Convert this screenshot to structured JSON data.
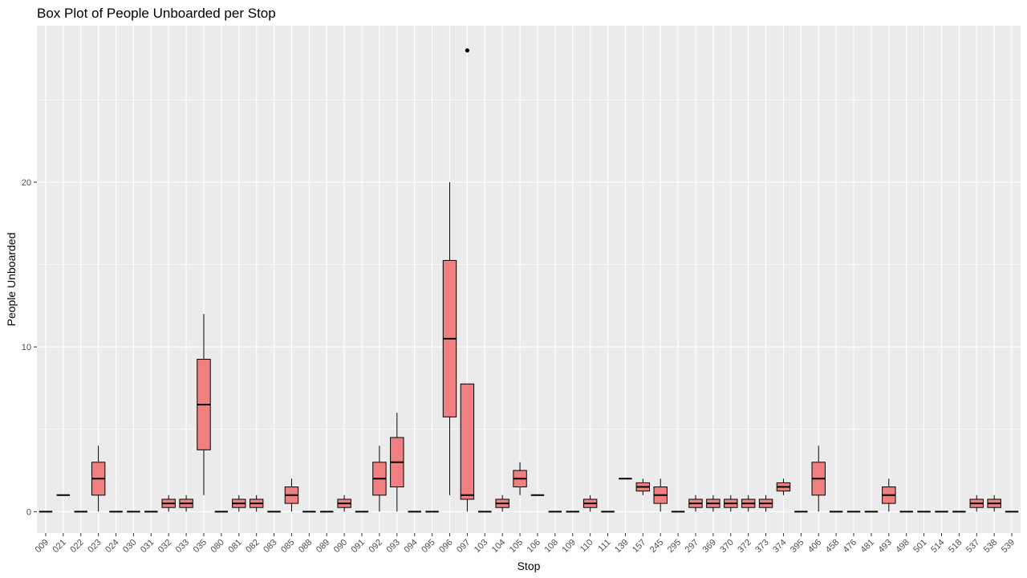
{
  "chart_data": {
    "type": "box",
    "title": "Box Plot of People Unboarded per Stop",
    "xlabel": "Stop",
    "ylabel": "People Unboarded",
    "ylim": [
      -1.3,
      29.5
    ],
    "yticks": [
      0,
      10,
      20
    ],
    "grid": true,
    "legend": "none",
    "fill_color": "#f08080",
    "panel_color": "#ebebeb",
    "categories": [
      "009",
      "021",
      "022",
      "023",
      "024",
      "030",
      "031",
      "032",
      "033",
      "035",
      "080",
      "081",
      "082",
      "083",
      "085",
      "088",
      "089",
      "090",
      "091",
      "092",
      "093",
      "094",
      "095",
      "096",
      "097",
      "103",
      "104",
      "105",
      "106",
      "108",
      "109",
      "110",
      "111",
      "139",
      "157",
      "245",
      "295",
      "297",
      "369",
      "370",
      "372",
      "373",
      "374",
      "395",
      "406",
      "458",
      "476",
      "481",
      "493",
      "498",
      "501",
      "514",
      "518",
      "537",
      "538",
      "539"
    ],
    "boxes": [
      {
        "stop": "009",
        "min": 0,
        "q1": 0,
        "median": 0,
        "q3": 0,
        "max": 0
      },
      {
        "stop": "021",
        "min": 1,
        "q1": 1,
        "median": 1,
        "q3": 1,
        "max": 1
      },
      {
        "stop": "022",
        "min": 0,
        "q1": 0,
        "median": 0,
        "q3": 0,
        "max": 0
      },
      {
        "stop": "023",
        "min": 0,
        "q1": 1,
        "median": 2,
        "q3": 3,
        "max": 4
      },
      {
        "stop": "024",
        "min": 0,
        "q1": 0,
        "median": 0,
        "q3": 0,
        "max": 0
      },
      {
        "stop": "030",
        "min": 0,
        "q1": 0,
        "median": 0,
        "q3": 0,
        "max": 0
      },
      {
        "stop": "031",
        "min": 0,
        "q1": 0,
        "median": 0,
        "q3": 0,
        "max": 0
      },
      {
        "stop": "032",
        "min": 0,
        "q1": 0.25,
        "median": 0.5,
        "q3": 0.75,
        "max": 1
      },
      {
        "stop": "033",
        "min": 0,
        "q1": 0.25,
        "median": 0.5,
        "q3": 0.75,
        "max": 1
      },
      {
        "stop": "035",
        "min": 1,
        "q1": 3.75,
        "median": 6.5,
        "q3": 9.25,
        "max": 12
      },
      {
        "stop": "080",
        "min": 0,
        "q1": 0,
        "median": 0,
        "q3": 0,
        "max": 0
      },
      {
        "stop": "081",
        "min": 0,
        "q1": 0.25,
        "median": 0.5,
        "q3": 0.75,
        "max": 1
      },
      {
        "stop": "082",
        "min": 0,
        "q1": 0.25,
        "median": 0.5,
        "q3": 0.75,
        "max": 1
      },
      {
        "stop": "083",
        "min": 0,
        "q1": 0,
        "median": 0,
        "q3": 0,
        "max": 0
      },
      {
        "stop": "085",
        "min": 0,
        "q1": 0.5,
        "median": 1,
        "q3": 1.5,
        "max": 2
      },
      {
        "stop": "088",
        "min": 0,
        "q1": 0,
        "median": 0,
        "q3": 0,
        "max": 0
      },
      {
        "stop": "089",
        "min": 0,
        "q1": 0,
        "median": 0,
        "q3": 0,
        "max": 0
      },
      {
        "stop": "090",
        "min": 0,
        "q1": 0.25,
        "median": 0.5,
        "q3": 0.75,
        "max": 1
      },
      {
        "stop": "091",
        "min": 0,
        "q1": 0,
        "median": 0,
        "q3": 0,
        "max": 0
      },
      {
        "stop": "092",
        "min": 0,
        "q1": 1,
        "median": 2,
        "q3": 3,
        "max": 4
      },
      {
        "stop": "093",
        "min": 0,
        "q1": 1.5,
        "median": 3,
        "q3": 4.5,
        "max": 6
      },
      {
        "stop": "094",
        "min": 0,
        "q1": 0,
        "median": 0,
        "q3": 0,
        "max": 0
      },
      {
        "stop": "095",
        "min": 0,
        "q1": 0,
        "median": 0,
        "q3": 0,
        "max": 0
      },
      {
        "stop": "096",
        "min": 1,
        "q1": 5.75,
        "median": 10.5,
        "q3": 15.25,
        "max": 20
      },
      {
        "stop": "097",
        "min": 0,
        "q1": 0.75,
        "median": 1,
        "q3": 7.75,
        "max": 7.75,
        "outliers": [
          28
        ]
      },
      {
        "stop": "103",
        "min": 0,
        "q1": 0,
        "median": 0,
        "q3": 0,
        "max": 0
      },
      {
        "stop": "104",
        "min": 0,
        "q1": 0.25,
        "median": 0.5,
        "q3": 0.75,
        "max": 1
      },
      {
        "stop": "105",
        "min": 1,
        "q1": 1.5,
        "median": 2,
        "q3": 2.5,
        "max": 3
      },
      {
        "stop": "106",
        "min": 1,
        "q1": 1,
        "median": 1,
        "q3": 1,
        "max": 1
      },
      {
        "stop": "108",
        "min": 0,
        "q1": 0,
        "median": 0,
        "q3": 0,
        "max": 0
      },
      {
        "stop": "109",
        "min": 0,
        "q1": 0,
        "median": 0,
        "q3": 0,
        "max": 0
      },
      {
        "stop": "110",
        "min": 0,
        "q1": 0.25,
        "median": 0.5,
        "q3": 0.75,
        "max": 1
      },
      {
        "stop": "111",
        "min": 0,
        "q1": 0,
        "median": 0,
        "q3": 0,
        "max": 0
      },
      {
        "stop": "139",
        "min": 2,
        "q1": 2,
        "median": 2,
        "q3": 2,
        "max": 2
      },
      {
        "stop": "157",
        "min": 1,
        "q1": 1.25,
        "median": 1.5,
        "q3": 1.75,
        "max": 2
      },
      {
        "stop": "245",
        "min": 0,
        "q1": 0.5,
        "median": 1,
        "q3": 1.5,
        "max": 2
      },
      {
        "stop": "295",
        "min": 0,
        "q1": 0,
        "median": 0,
        "q3": 0,
        "max": 0
      },
      {
        "stop": "297",
        "min": 0,
        "q1": 0.25,
        "median": 0.5,
        "q3": 0.75,
        "max": 1
      },
      {
        "stop": "369",
        "min": 0,
        "q1": 0.25,
        "median": 0.5,
        "q3": 0.75,
        "max": 1
      },
      {
        "stop": "370",
        "min": 0,
        "q1": 0.25,
        "median": 0.5,
        "q3": 0.75,
        "max": 1
      },
      {
        "stop": "372",
        "min": 0,
        "q1": 0.25,
        "median": 0.5,
        "q3": 0.75,
        "max": 1
      },
      {
        "stop": "373",
        "min": 0,
        "q1": 0.25,
        "median": 0.5,
        "q3": 0.75,
        "max": 1
      },
      {
        "stop": "374",
        "min": 1,
        "q1": 1.25,
        "median": 1.5,
        "q3": 1.75,
        "max": 2
      },
      {
        "stop": "395",
        "min": 0,
        "q1": 0,
        "median": 0,
        "q3": 0,
        "max": 0
      },
      {
        "stop": "406",
        "min": 0,
        "q1": 1,
        "median": 2,
        "q3": 3,
        "max": 4
      },
      {
        "stop": "458",
        "min": 0,
        "q1": 0,
        "median": 0,
        "q3": 0,
        "max": 0
      },
      {
        "stop": "476",
        "min": 0,
        "q1": 0,
        "median": 0,
        "q3": 0,
        "max": 0
      },
      {
        "stop": "481",
        "min": 0,
        "q1": 0,
        "median": 0,
        "q3": 0,
        "max": 0
      },
      {
        "stop": "493",
        "min": 0,
        "q1": 0.5,
        "median": 1,
        "q3": 1.5,
        "max": 2
      },
      {
        "stop": "498",
        "min": 0,
        "q1": 0,
        "median": 0,
        "q3": 0,
        "max": 0
      },
      {
        "stop": "501",
        "min": 0,
        "q1": 0,
        "median": 0,
        "q3": 0,
        "max": 0
      },
      {
        "stop": "514",
        "min": 0,
        "q1": 0,
        "median": 0,
        "q3": 0,
        "max": 0
      },
      {
        "stop": "518",
        "min": 0,
        "q1": 0,
        "median": 0,
        "q3": 0,
        "max": 0
      },
      {
        "stop": "537",
        "min": 0,
        "q1": 0.25,
        "median": 0.5,
        "q3": 0.75,
        "max": 1
      },
      {
        "stop": "538",
        "min": 0,
        "q1": 0.25,
        "median": 0.5,
        "q3": 0.75,
        "max": 1
      },
      {
        "stop": "539",
        "min": 0,
        "q1": 0,
        "median": 0,
        "q3": 0,
        "max": 0
      }
    ]
  }
}
